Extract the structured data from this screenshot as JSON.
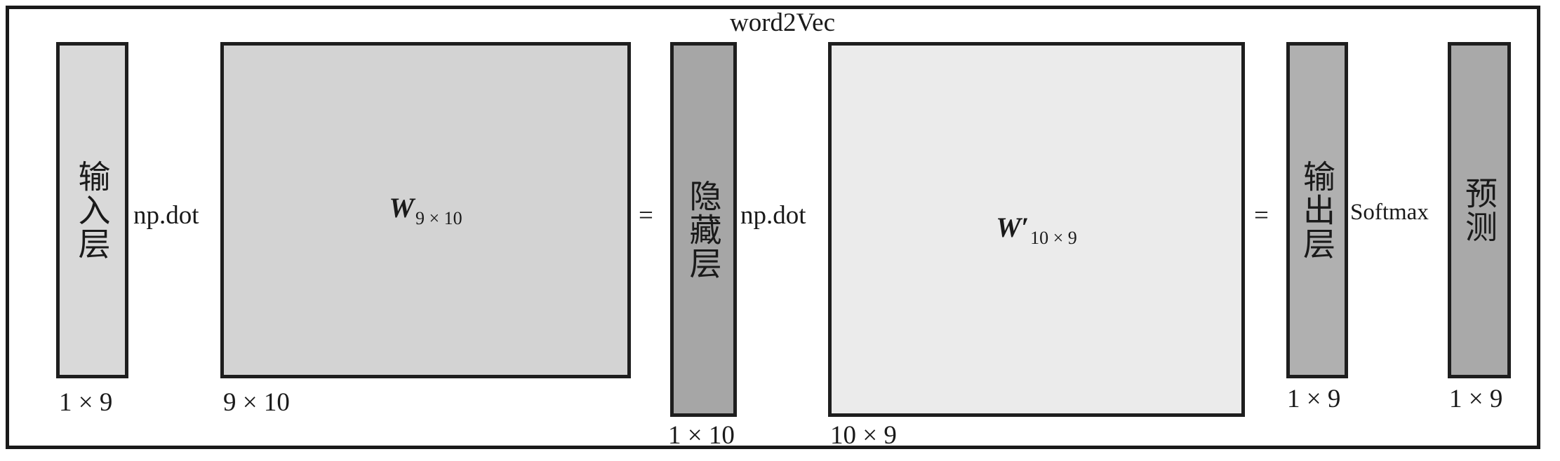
{
  "title": "word2Vec",
  "input_layer": {
    "label": "输入层",
    "dims": "1 × 9"
  },
  "op_dot_1": "np.dot",
  "weight_matrix": {
    "symbol": "W",
    "subscript": "9 × 10",
    "dims": "9 × 10"
  },
  "equals_1": "=",
  "hidden_layer": {
    "label": "隐藏层",
    "dims": "1 × 10"
  },
  "op_dot_2": "np.dot",
  "weight_matrix_prime": {
    "symbol": "W′",
    "subscript": "10 × 9",
    "dims": "10 × 9"
  },
  "equals_2": "=",
  "output_layer": {
    "label": "输出层",
    "dims": "1 × 9"
  },
  "op_softmax": "Softmax",
  "prediction": {
    "label": "预测",
    "dims": "1 × 9"
  },
  "colors": {
    "input_fill": "#d9d9d9",
    "weight_fill": "#d3d3d3",
    "hidden_fill": "#a6a6a6",
    "weight_prime_fill": "#ebebeb",
    "output_fill": "#b0b0b0",
    "prediction_fill": "#a9a9a9"
  }
}
